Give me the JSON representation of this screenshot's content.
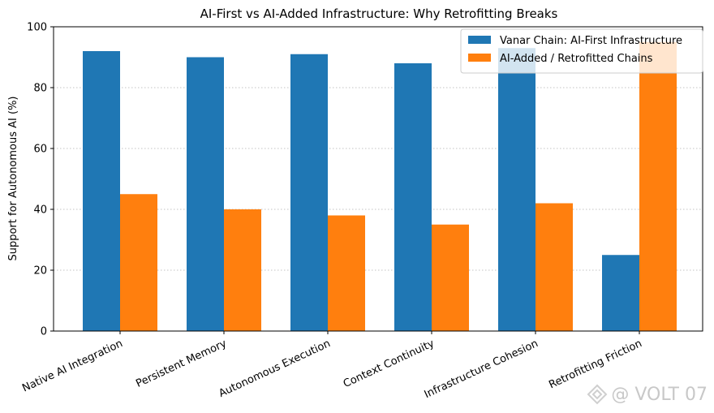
{
  "chart_data": {
    "type": "bar",
    "title": "AI-First vs AI-Added Infrastructure: Why Retrofitting Breaks",
    "xlabel": "",
    "ylabel": "Support for Autonomous AI (%)",
    "ylim": [
      0,
      100
    ],
    "yticks": [
      0,
      20,
      40,
      60,
      80,
      100
    ],
    "grid": "y-dotted",
    "legend_position": "top-right",
    "categories": [
      "Native AI Integration",
      "Persistent Memory",
      "Autonomous Execution",
      "Context Continuity",
      "Infrastructure Cohesion",
      "Retrofitting Friction"
    ],
    "series": [
      {
        "name": "Vanar Chain: AI-First Infrastructure",
        "color": "#1f77b4",
        "values": [
          92,
          90,
          91,
          88,
          93,
          25
        ]
      },
      {
        "name": "AI-Added / Retrofitted Chains",
        "color": "#ff7f0e",
        "values": [
          45,
          40,
          38,
          35,
          42,
          95
        ]
      }
    ]
  },
  "watermark": {
    "text": "@ VOLT 07",
    "icon": "diamond-logo-icon"
  }
}
